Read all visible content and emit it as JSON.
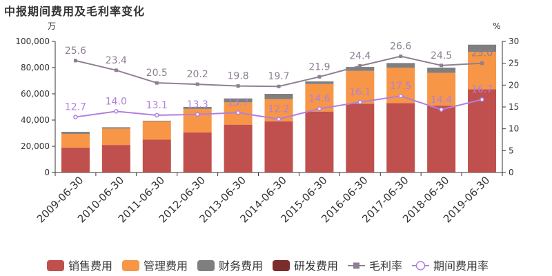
{
  "title": "中报期间费用及毛利率变化",
  "chart_data": {
    "type": "bar",
    "stacked": true,
    "categories": [
      "2009-06-30",
      "2010-06-30",
      "2011-06-30",
      "2012-06-30",
      "2013-06-30",
      "2014-06-30",
      "2015-06-30",
      "2016-06-30",
      "2017-06-30",
      "2018-06-30",
      "2019-06-30"
    ],
    "y_left": {
      "unit": "万",
      "lim": [
        0,
        100000
      ],
      "ticks": [
        0,
        20000,
        40000,
        60000,
        80000,
        100000
      ],
      "tick_labels": [
        "0",
        "20,000",
        "40,000",
        "60,000",
        "80,000",
        "100,000"
      ]
    },
    "y_right": {
      "unit": "%",
      "lim": [
        0,
        30
      ],
      "ticks": [
        0,
        5,
        10,
        15,
        20,
        25,
        30
      ]
    },
    "bar_series": [
      {
        "name": "销售费用",
        "color": "#c0504d",
        "values": [
          19000,
          21000,
          25000,
          30500,
          36500,
          39000,
          46500,
          52500,
          53000,
          51000,
          63500
        ]
      },
      {
        "name": "管理费用",
        "color": "#f79646",
        "values": [
          10500,
          12500,
          14000,
          18000,
          17000,
          17000,
          21000,
          25000,
          27000,
          25000,
          28500
        ]
      },
      {
        "name": "财务费用",
        "color": "#7f7f7f",
        "values": [
          1500,
          1000,
          500,
          1500,
          3000,
          4000,
          2000,
          3000,
          3500,
          4000,
          5500
        ]
      },
      {
        "name": "研发费用",
        "color": "#7b2c2c",
        "values": [
          0,
          0,
          0,
          0,
          0,
          0,
          0,
          0,
          0,
          0,
          0
        ]
      }
    ],
    "line_series": [
      {
        "name": "毛利率",
        "color": "#8e7f93",
        "marker": "square",
        "axis": "right",
        "values": [
          25.6,
          23.4,
          20.5,
          20.2,
          19.8,
          19.7,
          21.9,
          24.4,
          26.6,
          24.5,
          25.0
        ],
        "labels": [
          "25.6",
          "23.4",
          "20.5",
          "20.2",
          "19.8",
          "19.7",
          "21.9",
          "24.4",
          "26.6",
          "24.5",
          "25.0"
        ]
      },
      {
        "name": "期间费用率",
        "color": "#b07fe0",
        "marker": "circle",
        "axis": "right",
        "values": [
          12.7,
          14.0,
          13.1,
          13.3,
          13.7,
          12.2,
          14.6,
          16.1,
          17.5,
          14.4,
          16.7
        ],
        "labels": [
          "12.7",
          "14.0",
          "13.1",
          "13.3",
          "13.7",
          "12.2",
          "14.6",
          "16.1",
          "17.5",
          "14.4",
          "16.7"
        ]
      }
    ],
    "legend_position": "bottom"
  }
}
